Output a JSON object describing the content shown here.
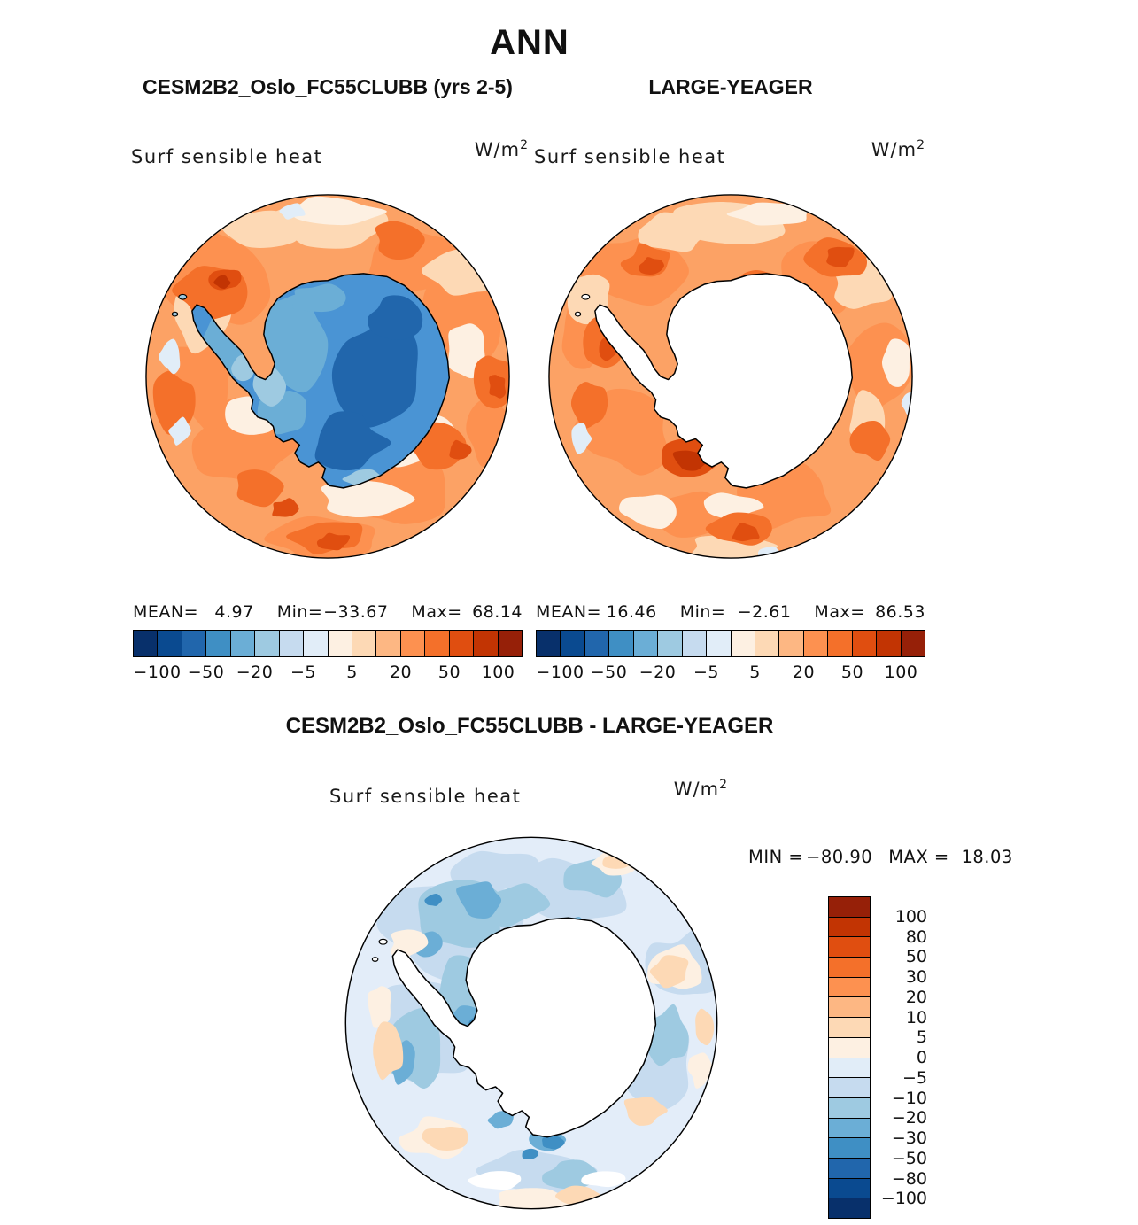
{
  "header": {
    "title": "ANN",
    "left_subtitle": "CESM2B2_Oslo_FC55CLUBB (yrs 2-5)",
    "right_subtitle": "LARGE-YEAGER"
  },
  "panels": {
    "model": {
      "field_label": "Surf sensible heat",
      "units_base": "W/m",
      "units_exp": "2",
      "stats": {
        "mean_label": "MEAN=",
        "mean": "4.97",
        "min_label": "Min=",
        "min": "−33.67",
        "max_label": "Max=",
        "max": "68.14"
      }
    },
    "obs": {
      "field_label": "Surf sensible heat",
      "units_base": "W/m",
      "units_exp": "2",
      "stats": {
        "mean_label": "MEAN=",
        "mean": "16.46",
        "min_label": "Min=",
        "min": "−2.61",
        "max_label": "Max=",
        "max": "86.53"
      }
    },
    "diff": {
      "title": "CESM2B2_Oslo_FC55CLUBB - LARGE-YEAGER",
      "field_label": "Surf sensible heat",
      "units_base": "W/m",
      "units_exp": "2",
      "minmax": {
        "min_label": "MIN =",
        "min": "−80.90",
        "max_label": "MAX =",
        "max": "18.03"
      }
    }
  },
  "colorbar": {
    "tick_labels": [
      "−100",
      "−50",
      "−20",
      "−5",
      "5",
      "20",
      "50",
      "100"
    ],
    "vertical_labels": [
      "100",
      "80",
      "50",
      "30",
      "20",
      "10",
      "5",
      "0",
      "−5",
      "−10",
      "−20",
      "−30",
      "−50",
      "−80",
      "−100"
    ],
    "palette": [
      "#08306b",
      "#0a4a90",
      "#2166ac",
      "#3f8fc4",
      "#6baed6",
      "#9ecae1",
      "#c6dbef",
      "#e1edf8",
      "#fdf0e2",
      "#fdd9b5",
      "#fdb783",
      "#fd9150",
      "#f4702a",
      "#e04e10",
      "#c23403",
      "#962008"
    ]
  },
  "colors": {
    "background": "#ffffff",
    "coastline": "#000000",
    "ocean_base": "#fca265",
    "model_land": "#4a94d4",
    "obs_land": "#ffffff",
    "diff_base": "#e3edf9"
  },
  "chart_data": [
    {
      "type": "heatmap",
      "panel": "model",
      "title": "CESM2B2_Oslo_FC55CLUBB (yrs 2-5)",
      "season": "ANN",
      "variable": "Surf sensible heat",
      "units": "W/m^2",
      "projection": "south polar stereographic (Antarctica)",
      "stats": {
        "mean": 4.97,
        "min": -33.67,
        "max": 68.14
      },
      "contour_levels": [
        -100,
        -80,
        -50,
        -30,
        -20,
        -10,
        -5,
        0,
        5,
        10,
        20,
        30,
        50,
        80,
        100
      ]
    },
    {
      "type": "heatmap",
      "panel": "obs",
      "title": "LARGE-YEAGER",
      "season": "ANN",
      "variable": "Surf sensible heat",
      "units": "W/m^2",
      "projection": "south polar stereographic (Antarctica)",
      "stats": {
        "mean": 16.46,
        "min": -2.61,
        "max": 86.53
      },
      "contour_levels": [
        -100,
        -80,
        -50,
        -30,
        -20,
        -10,
        -5,
        0,
        5,
        10,
        20,
        30,
        50,
        80,
        100
      ]
    },
    {
      "type": "heatmap",
      "panel": "difference",
      "title": "CESM2B2_Oslo_FC55CLUBB - LARGE-YEAGER",
      "season": "ANN",
      "variable": "Surf sensible heat",
      "units": "W/m^2",
      "projection": "south polar stereographic (Antarctica)",
      "stats": {
        "min": -80.9,
        "max": 18.03
      },
      "contour_levels": [
        -100,
        -80,
        -50,
        -30,
        -20,
        -10,
        -5,
        0,
        5,
        10,
        20,
        30,
        50,
        80,
        100
      ]
    }
  ]
}
